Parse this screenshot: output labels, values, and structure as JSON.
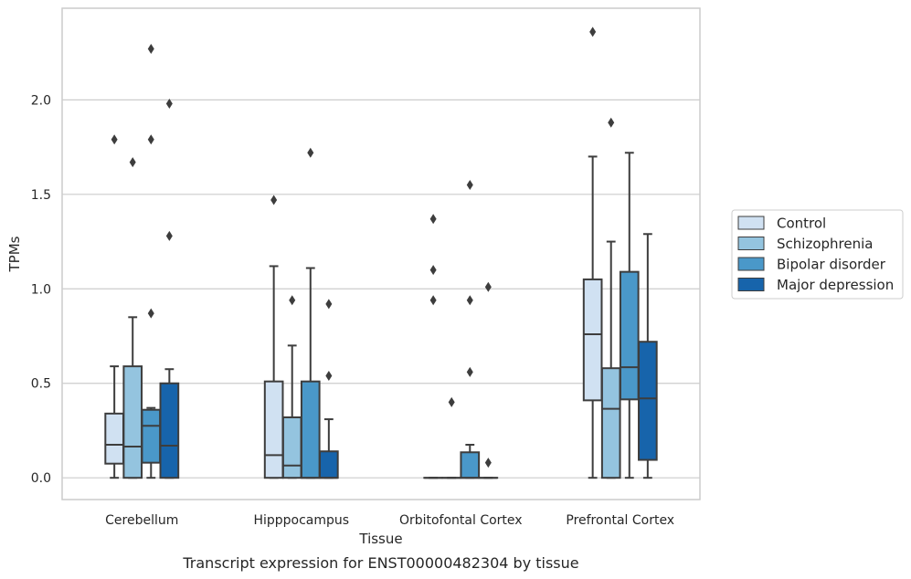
{
  "chart_data": {
    "type": "boxplot",
    "title": "",
    "caption": "Transcript expression for ENST00000482304 by tissue",
    "xlabel": "Tissue",
    "ylabel": "TPMs",
    "ylim": [
      -0.115,
      2.485
    ],
    "yticks": [
      0.0,
      0.5,
      1.0,
      1.5,
      2.0
    ],
    "ytick_labels": [
      "0.0",
      "0.5",
      "1.0",
      "1.5",
      "2.0"
    ],
    "grid": "horizontal",
    "legend_position": "right",
    "categories": [
      "Cerebellum",
      "Hipppocampus",
      "Orbitofontal Cortex",
      "Prefrontal Cortex"
    ],
    "series": [
      {
        "name": "Control",
        "color": "#d0e1f2",
        "boxes": [
          {
            "whisker_low": 0.0,
            "q1": 0.075,
            "median": 0.175,
            "q3": 0.34,
            "whisker_high": 0.59,
            "outliers": [
              1.79
            ]
          },
          {
            "whisker_low": 0.0,
            "q1": 0.0,
            "median": 0.12,
            "q3": 0.51,
            "whisker_high": 1.12,
            "outliers": [
              1.47
            ]
          },
          {
            "whisker_low": 0.0,
            "q1": 0.0,
            "median": 0.0,
            "q3": 0.0,
            "whisker_high": 0.0,
            "outliers": [
              0.94,
              1.1,
              1.37
            ]
          },
          {
            "whisker_low": 0.0,
            "q1": 0.41,
            "median": 0.76,
            "q3": 1.05,
            "whisker_high": 1.7,
            "outliers": [
              2.36
            ]
          }
        ]
      },
      {
        "name": "Schizophrenia",
        "color": "#94c4df",
        "boxes": [
          {
            "whisker_low": 0.0,
            "q1": 0.0,
            "median": 0.165,
            "q3": 0.59,
            "whisker_high": 0.85,
            "outliers": [
              1.67
            ]
          },
          {
            "whisker_low": 0.0,
            "q1": 0.0,
            "median": 0.065,
            "q3": 0.32,
            "whisker_high": 0.7,
            "outliers": [
              0.94
            ]
          },
          {
            "whisker_low": 0.0,
            "q1": 0.0,
            "median": 0.0,
            "q3": 0.0,
            "whisker_high": 0.0,
            "outliers": [
              0.4
            ]
          },
          {
            "whisker_low": 0.0,
            "q1": 0.0,
            "median": 0.365,
            "q3": 0.58,
            "whisker_high": 1.25,
            "outliers": [
              1.88
            ]
          }
        ]
      },
      {
        "name": "Bipolar disorder",
        "color": "#4a98c9",
        "boxes": [
          {
            "whisker_low": 0.0,
            "q1": 0.08,
            "median": 0.275,
            "q3": 0.36,
            "whisker_high": 0.37,
            "outliers": [
              0.87,
              1.79,
              2.27
            ]
          },
          {
            "whisker_low": 0.0,
            "q1": 0.0,
            "median": 0.0,
            "q3": 0.51,
            "whisker_high": 1.11,
            "outliers": [
              1.72
            ]
          },
          {
            "whisker_low": 0.0,
            "q1": 0.0,
            "median": 0.0,
            "q3": 0.135,
            "whisker_high": 0.175,
            "outliers": [
              0.56,
              0.94,
              1.55
            ]
          },
          {
            "whisker_low": 0.0,
            "q1": 0.415,
            "median": 0.585,
            "q3": 1.09,
            "whisker_high": 1.72,
            "outliers": []
          }
        ]
      },
      {
        "name": "Major depression",
        "color": "#1764ab",
        "boxes": [
          {
            "whisker_low": 0.0,
            "q1": 0.0,
            "median": 0.17,
            "q3": 0.5,
            "whisker_high": 0.575,
            "outliers": [
              1.28,
              1.98
            ]
          },
          {
            "whisker_low": 0.0,
            "q1": 0.0,
            "median": 0.0,
            "q3": 0.14,
            "whisker_high": 0.31,
            "outliers": [
              0.54,
              0.92
            ]
          },
          {
            "whisker_low": 0.0,
            "q1": 0.0,
            "median": 0.0,
            "q3": 0.0,
            "whisker_high": 0.0,
            "outliers": [
              0.08,
              1.01
            ]
          },
          {
            "whisker_low": 0.0,
            "q1": 0.095,
            "median": 0.42,
            "q3": 0.72,
            "whisker_high": 1.29,
            "outliers": []
          }
        ]
      }
    ]
  }
}
